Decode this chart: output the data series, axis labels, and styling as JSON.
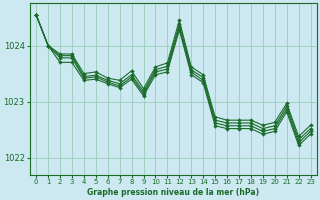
{
  "bg_color": "#cce8f0",
  "grid_color": "#99ccbb",
  "line_color": "#1a6b2a",
  "title": "Graphe pression niveau de la mer (hPa)",
  "xlim": [
    -0.5,
    23.5
  ],
  "ylim": [
    1021.7,
    1024.75
  ],
  "yticks": [
    1022,
    1023,
    1024
  ],
  "xticks": [
    0,
    1,
    2,
    3,
    4,
    5,
    6,
    7,
    8,
    9,
    10,
    11,
    12,
    13,
    14,
    15,
    16,
    17,
    18,
    19,
    20,
    21,
    22,
    23
  ],
  "series": [
    [
      1024.55,
      1024.0,
      1023.85,
      1023.85,
      1023.5,
      1023.53,
      1023.42,
      1023.38,
      1023.55,
      1023.23,
      1023.62,
      1023.69,
      1024.45,
      1023.62,
      1023.48,
      1022.73,
      1022.67,
      1022.67,
      1022.67,
      1022.58,
      1022.63,
      1022.97,
      1022.38,
      1022.58
    ],
    [
      1024.55,
      1024.0,
      1023.82,
      1023.82,
      1023.45,
      1023.47,
      1023.38,
      1023.32,
      1023.48,
      1023.18,
      1023.57,
      1023.63,
      1024.38,
      1023.57,
      1023.43,
      1022.67,
      1022.62,
      1022.62,
      1022.62,
      1022.52,
      1022.57,
      1022.92,
      1022.32,
      1022.52
    ],
    [
      1024.55,
      1024.0,
      1023.78,
      1023.78,
      1023.42,
      1023.44,
      1023.35,
      1023.28,
      1023.44,
      1023.14,
      1023.53,
      1023.58,
      1024.33,
      1023.53,
      1023.38,
      1022.62,
      1022.57,
      1022.57,
      1022.57,
      1022.47,
      1022.52,
      1022.87,
      1022.27,
      1022.47
    ],
    [
      1024.55,
      1024.0,
      1023.7,
      1023.7,
      1023.38,
      1023.4,
      1023.32,
      1023.25,
      1023.4,
      1023.1,
      1023.48,
      1023.53,
      1024.28,
      1023.48,
      1023.34,
      1022.57,
      1022.52,
      1022.52,
      1022.52,
      1022.42,
      1022.47,
      1022.82,
      1022.22,
      1022.42
    ]
  ]
}
